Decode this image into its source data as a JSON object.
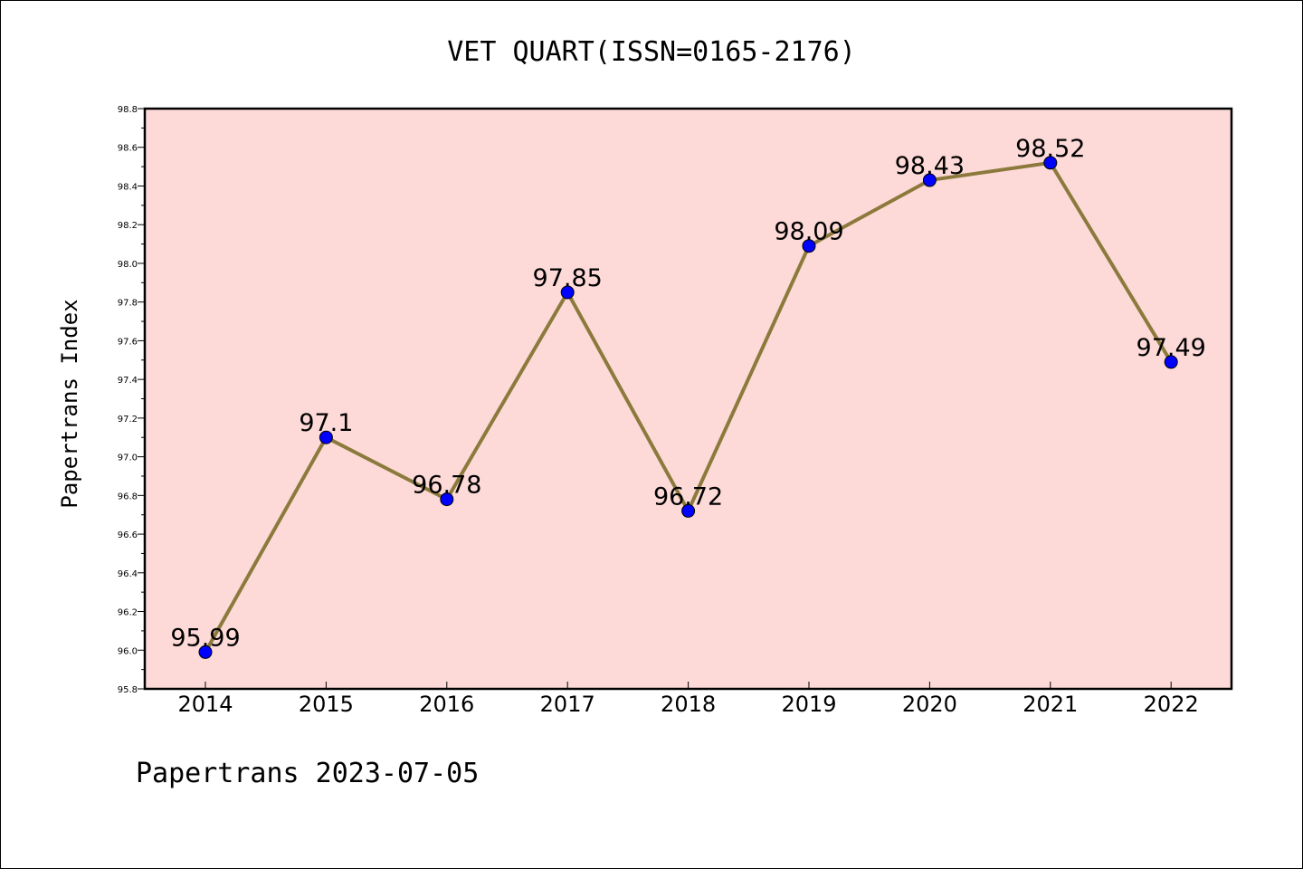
{
  "chart_data": {
    "type": "line",
    "title": "VET QUART(ISSN=0165-2176)",
    "xlabel": "",
    "ylabel": "Papertrans Index",
    "categories": [
      "2014",
      "2015",
      "2016",
      "2017",
      "2018",
      "2019",
      "2020",
      "2021",
      "2022"
    ],
    "values": [
      95.99,
      97.1,
      96.78,
      97.85,
      96.72,
      98.09,
      98.43,
      98.52,
      97.49
    ],
    "data_labels": [
      "95.99",
      "97.1",
      "96.78",
      "97.85",
      "96.72",
      "98.09",
      "98.43",
      "98.52",
      "97.49"
    ],
    "ylim": [
      95.8,
      98.8
    ],
    "yticks": [
      "95.8",
      "96.0",
      "96.2",
      "96.4",
      "96.6",
      "96.8",
      "97.0",
      "97.2",
      "97.4",
      "97.6",
      "97.8",
      "98.0",
      "98.2",
      "98.4",
      "98.6",
      "98.8"
    ],
    "grid": false,
    "legend": "none",
    "colors": {
      "plot_background": "#fddad8",
      "line": "#8c7a3c",
      "marker": "#0000ff"
    }
  },
  "footer": "Papertrans 2023-07-05"
}
